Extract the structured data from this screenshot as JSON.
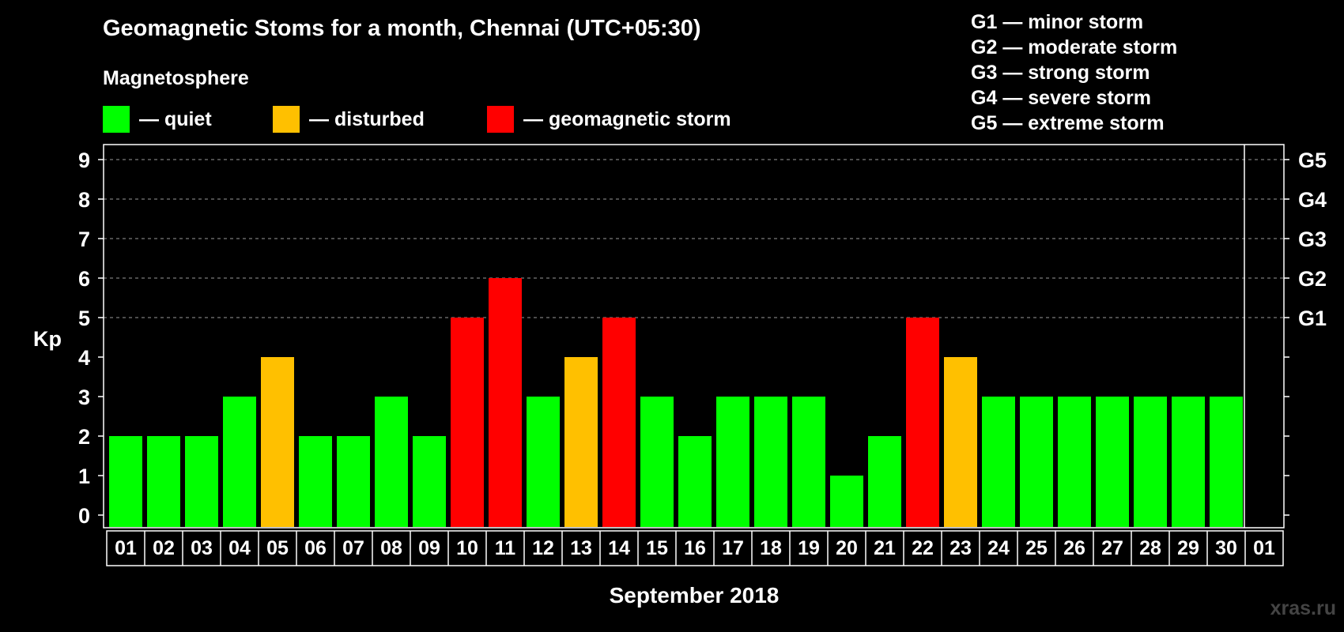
{
  "title": "Geomagnetic Stoms for a month, Chennai (UTC+05:30)",
  "legend": {
    "heading": "Magnetosphere",
    "items": [
      {
        "label": "— quiet",
        "color": "#00ff00"
      },
      {
        "label": "— disturbed",
        "color": "#ffc000"
      },
      {
        "label": "— geomagnetic storm",
        "color": "#ff0000"
      }
    ]
  },
  "storm_scale": [
    {
      "code": "G1",
      "dash": "—",
      "label": "minor storm"
    },
    {
      "code": "G2",
      "dash": "—",
      "label": "moderate storm"
    },
    {
      "code": "G3",
      "dash": "—",
      "label": "strong storm"
    },
    {
      "code": "G4",
      "dash": "—",
      "label": "severe storm"
    },
    {
      "code": "G5",
      "dash": "—",
      "label": "extreme storm"
    }
  ],
  "chart_data": {
    "type": "bar",
    "title": "Geomagnetic Stoms for a month, Chennai (UTC+05:30)",
    "xlabel": "September 2018",
    "ylabel": "Kp",
    "ylim": [
      0,
      9
    ],
    "yticks": [
      0,
      1,
      2,
      3,
      4,
      5,
      6,
      7,
      8,
      9
    ],
    "right_axis_labels": [
      {
        "kp": 5,
        "label": "G1"
      },
      {
        "kp": 6,
        "label": "G2"
      },
      {
        "kp": 7,
        "label": "G3"
      },
      {
        "kp": 8,
        "label": "G4"
      },
      {
        "kp": 9,
        "label": "G5"
      }
    ],
    "categories": [
      "01",
      "02",
      "03",
      "04",
      "05",
      "06",
      "07",
      "08",
      "09",
      "10",
      "11",
      "12",
      "13",
      "14",
      "15",
      "16",
      "17",
      "18",
      "19",
      "20",
      "21",
      "22",
      "23",
      "24",
      "25",
      "26",
      "27",
      "28",
      "29",
      "30",
      "01"
    ],
    "values": [
      2,
      2,
      2,
      3,
      4,
      2,
      2,
      3,
      2,
      5,
      6,
      3,
      4,
      5,
      3,
      2,
      3,
      3,
      3,
      1,
      2,
      5,
      4,
      3,
      3,
      3,
      3,
      3,
      3,
      3,
      null
    ],
    "level_colors": {
      "quiet": "#00ff00",
      "disturbed": "#ffc000",
      "storm": "#ff0000"
    },
    "grid": true,
    "gridlines_at": [
      5,
      6,
      7,
      8,
      9
    ],
    "legend_position": "top-left"
  },
  "watermark": "xras.ru"
}
